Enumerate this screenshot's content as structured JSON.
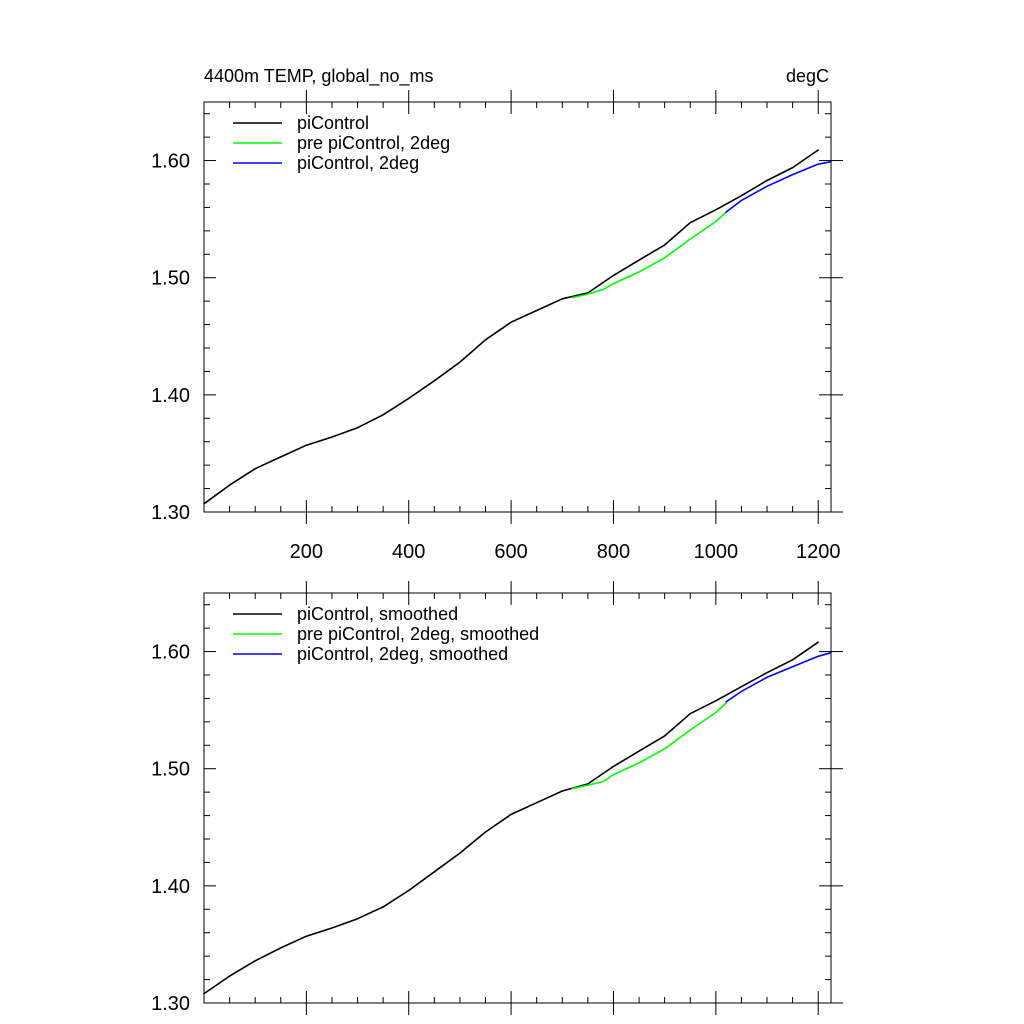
{
  "chart_data": [
    {
      "type": "line",
      "title": "4400m TEMP, global_no_ms",
      "units": "degC",
      "xlabel": "",
      "ylabel": "",
      "xlim": [
        0,
        1225
      ],
      "ylim": [
        1.3,
        1.65
      ],
      "x_ticks": [
        200,
        400,
        600,
        800,
        1000,
        1200
      ],
      "x_tick_labels": [
        "200",
        "400",
        "600",
        "800",
        "1000",
        "1200"
      ],
      "y_ticks": [
        1.3,
        1.4,
        1.5,
        1.6
      ],
      "y_tick_labels": [
        "1.30",
        "1.40",
        "1.50",
        "1.60"
      ],
      "grid": false,
      "legend_position": "top-left",
      "series": [
        {
          "name": "piControl",
          "color": "#000000",
          "x": [
            0,
            50,
            100,
            150,
            200,
            250,
            300,
            350,
            400,
            450,
            500,
            550,
            600,
            650,
            700,
            750,
            800,
            850,
            900,
            950,
            1000,
            1050,
            1100,
            1150,
            1200
          ],
          "y": [
            1.307,
            1.323,
            1.337,
            1.347,
            1.357,
            1.364,
            1.372,
            1.383,
            1.397,
            1.412,
            1.428,
            1.447,
            1.462,
            1.472,
            1.482,
            1.487,
            1.502,
            1.515,
            1.528,
            1.547,
            1.558,
            1.57,
            1.583,
            1.594,
            1.609
          ]
        },
        {
          "name": "pre piControl, 2deg",
          "color": "#00ff00",
          "x": [
            720,
            750,
            780,
            800,
            850,
            900,
            950,
            1000,
            1020
          ],
          "y": [
            1.483,
            1.486,
            1.49,
            1.495,
            1.505,
            1.517,
            1.533,
            1.548,
            1.556
          ]
        },
        {
          "name": "piControl, 2deg",
          "color": "#0000ff",
          "x": [
            1020,
            1050,
            1100,
            1150,
            1200,
            1225
          ],
          "y": [
            1.556,
            1.566,
            1.578,
            1.588,
            1.597,
            1.599
          ]
        }
      ]
    },
    {
      "type": "line",
      "title": "",
      "xlabel": "",
      "ylabel": "",
      "xlim": [
        0,
        1225
      ],
      "ylim": [
        1.3,
        1.65
      ],
      "x_ticks": [
        200,
        400,
        600,
        800,
        1000,
        1200
      ],
      "y_ticks": [
        1.3,
        1.4,
        1.5,
        1.6
      ],
      "y_tick_labels": [
        "1.30",
        "1.40",
        "1.50",
        "1.60"
      ],
      "grid": false,
      "legend_position": "top-left",
      "series": [
        {
          "name": "piControl, smoothed",
          "color": "#000000",
          "x": [
            0,
            50,
            100,
            150,
            200,
            250,
            300,
            350,
            400,
            450,
            500,
            550,
            600,
            650,
            700,
            750,
            800,
            850,
            900,
            950,
            1000,
            1050,
            1100,
            1150,
            1200
          ],
          "y": [
            1.308,
            1.323,
            1.336,
            1.347,
            1.357,
            1.364,
            1.372,
            1.382,
            1.396,
            1.412,
            1.428,
            1.446,
            1.461,
            1.471,
            1.481,
            1.487,
            1.502,
            1.515,
            1.528,
            1.547,
            1.558,
            1.57,
            1.582,
            1.593,
            1.608
          ]
        },
        {
          "name": "pre piControl, 2deg, smoothed",
          "color": "#00ff00",
          "x": [
            720,
            750,
            780,
            800,
            850,
            900,
            950,
            1000,
            1020
          ],
          "y": [
            1.483,
            1.486,
            1.489,
            1.495,
            1.505,
            1.517,
            1.533,
            1.548,
            1.556
          ]
        },
        {
          "name": "piControl, 2deg, smoothed",
          "color": "#0000ff",
          "x": [
            1020,
            1050,
            1100,
            1150,
            1200,
            1225
          ],
          "y": [
            1.557,
            1.566,
            1.578,
            1.587,
            1.596,
            1.599
          ]
        }
      ]
    }
  ]
}
